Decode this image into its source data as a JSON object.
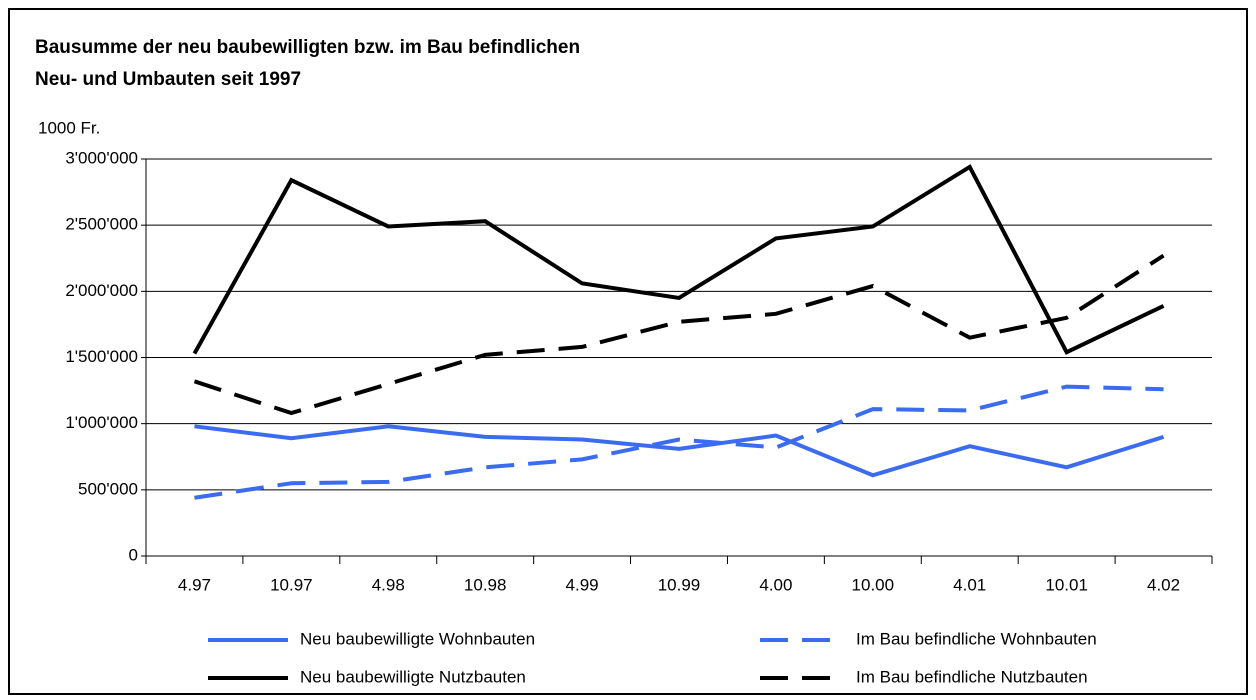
{
  "chart_data": {
    "type": "line",
    "title": [
      "Bausumme der neu baubewilligten bzw. im Bau befindlichen",
      "Neu- und Umbauten seit 1997"
    ],
    "y_label": "1000 Fr.",
    "categories": [
      "4.97",
      "10.97",
      "4.98",
      "10.98",
      "4.99",
      "10.99",
      "4.00",
      "10.00",
      "4.01",
      "10.01",
      "4.02"
    ],
    "series": [
      {
        "name": "Neu baubewilligte Wohnbauten",
        "color": "#3b6cf0",
        "dashed": false,
        "values": [
          980000,
          890000,
          980000,
          900000,
          880000,
          810000,
          910000,
          610000,
          830000,
          670000,
          900000
        ]
      },
      {
        "name": "Im Bau befindliche Wohnbauten",
        "color": "#3b6cf0",
        "dashed": true,
        "values": [
          440000,
          550000,
          560000,
          670000,
          730000,
          880000,
          820000,
          1110000,
          1100000,
          1280000,
          1260000
        ]
      },
      {
        "name": "Neu baubewilligte Nutzbauten",
        "color": "#000000",
        "dashed": false,
        "values": [
          1530000,
          2840000,
          2490000,
          2530000,
          2060000,
          1950000,
          2400000,
          2490000,
          2940000,
          1540000,
          1890000
        ]
      },
      {
        "name": "Im Bau befindliche Nutzbauten",
        "color": "#000000",
        "dashed": true,
        "values": [
          1320000,
          1080000,
          1300000,
          1520000,
          1580000,
          1770000,
          1830000,
          2040000,
          1650000,
          1800000,
          2270000
        ]
      }
    ],
    "ylim": [
      0,
      3000000
    ],
    "yticks": [
      0,
      {
        "value": 500000,
        "label": "500'000"
      },
      {
        "value": 1000000,
        "label": "1'000'000"
      },
      {
        "value": 1500000,
        "label": "1'500'000"
      },
      {
        "value": 2000000,
        "label": "2'000'000"
      },
      {
        "value": 2500000,
        "label": "2'500'000"
      },
      {
        "value": 3000000,
        "label": "3'000'000"
      }
    ],
    "grid": true,
    "legend": "bottom"
  }
}
